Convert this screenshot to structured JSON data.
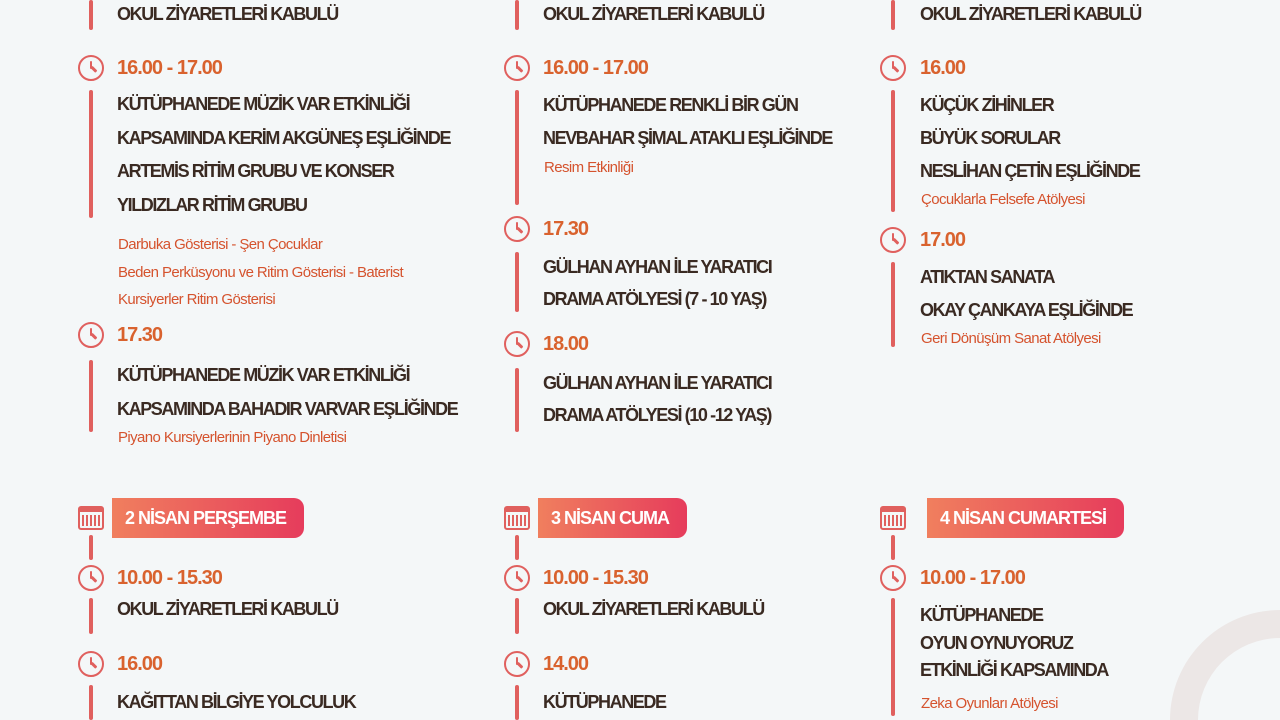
{
  "colors": {
    "background": "#f4f7f8",
    "title": "#3a2a22",
    "time": "#d9622e",
    "accent_line": "#e0605e",
    "badge_start": "#f07f5e",
    "badge_end": "#e63c5c"
  },
  "top_columns": [
    {
      "items": [
        {
          "title": [
            "OKUL ZİYARETLERİ KABULÜ"
          ]
        },
        {
          "time": "16.00 - 17.00",
          "title": [
            "KÜTÜPHANEDE MÜZİK VAR ETKİNLİĞİ",
            "KAPSAMINDA KERİM AKGÜNEŞ EŞLİĞİNDE",
            "ARTEMİS RİTİM GRUBU VE KONSER",
            "YILDIZLAR RİTİM GRUBU"
          ],
          "sub": [
            "Darbuka Gösterisi - Şen Çocuklar",
            "Beden Perküsyonu ve Ritim Gösterisi - Baterist",
            "Kursiyerler Ritim Gösterisi"
          ]
        },
        {
          "time": "17.30",
          "title": [
            "KÜTÜPHANEDE MÜZİK VAR ETKİNLİĞİ",
            "KAPSAMINDA BAHADIR VARVAR EŞLİĞİNDE"
          ],
          "sub": [
            "Piyano Kursiyerlerinin Piyano Dinletisi"
          ]
        }
      ]
    },
    {
      "items": [
        {
          "title": [
            "OKUL ZİYARETLERİ KABULÜ"
          ]
        },
        {
          "time": "16.00 - 17.00",
          "title": [
            "KÜTÜPHANEDE RENKLİ BİR GÜN",
            "NEVBAHAR ŞİMAL ATAKLI EŞLİĞİNDE"
          ],
          "sub": [
            "Resim Etkinliği"
          ]
        },
        {
          "time": "17.30",
          "title": [
            "GÜLHAN AYHAN İLE YARATICI",
            "DRAMA ATÖLYESİ (7 - 10 YAŞ)"
          ]
        },
        {
          "time": "18.00",
          "title": [
            "GÜLHAN AYHAN İLE YARATICI",
            "DRAMA ATÖLYESİ (10 -12 YAŞ)"
          ]
        }
      ]
    },
    {
      "items": [
        {
          "title": [
            "OKUL ZİYARETLERİ KABULÜ"
          ]
        },
        {
          "time": "16.00",
          "title": [
            "KÜÇÜK ZİHİNLER",
            "BÜYÜK SORULAR",
            "NESLİHAN ÇETİN EŞLİĞİNDE"
          ],
          "sub": [
            "Çocuklarla Felsefe Atölyesi"
          ]
        },
        {
          "time": "17.00",
          "title": [
            "ATIKTAN SANATA",
            "OKAY ÇANKAYA EŞLİĞİNDE"
          ],
          "sub": [
            "Geri Dönüşüm Sanat Atölyesi"
          ]
        }
      ]
    }
  ],
  "bottom_columns": [
    {
      "day": "2 NİSAN PERŞEMBE",
      "items": [
        {
          "time": "10.00 - 15.30",
          "title": [
            "OKUL ZİYARETLERİ KABULÜ"
          ]
        },
        {
          "time": "16.00",
          "title": [
            "KAĞITTAN BİLGİYE YOLCULUK"
          ]
        }
      ]
    },
    {
      "day": "3 NİSAN CUMA",
      "items": [
        {
          "time": "10.00 - 15.30",
          "title": [
            "OKUL ZİYARETLERİ KABULÜ"
          ]
        },
        {
          "time": "14.00",
          "title": [
            "KÜTÜPHANEDE"
          ]
        }
      ]
    },
    {
      "day": "4 NİSAN CUMARTESİ",
      "items": [
        {
          "time": "10.00 - 17.00",
          "title": [
            "KÜTÜPHANEDE",
            "OYUN OYNUYORUZ",
            "ETKİNLİĞİ KAPSAMINDA"
          ],
          "sub": [
            "Zeka Oyunları Atölyesi"
          ]
        }
      ]
    }
  ]
}
